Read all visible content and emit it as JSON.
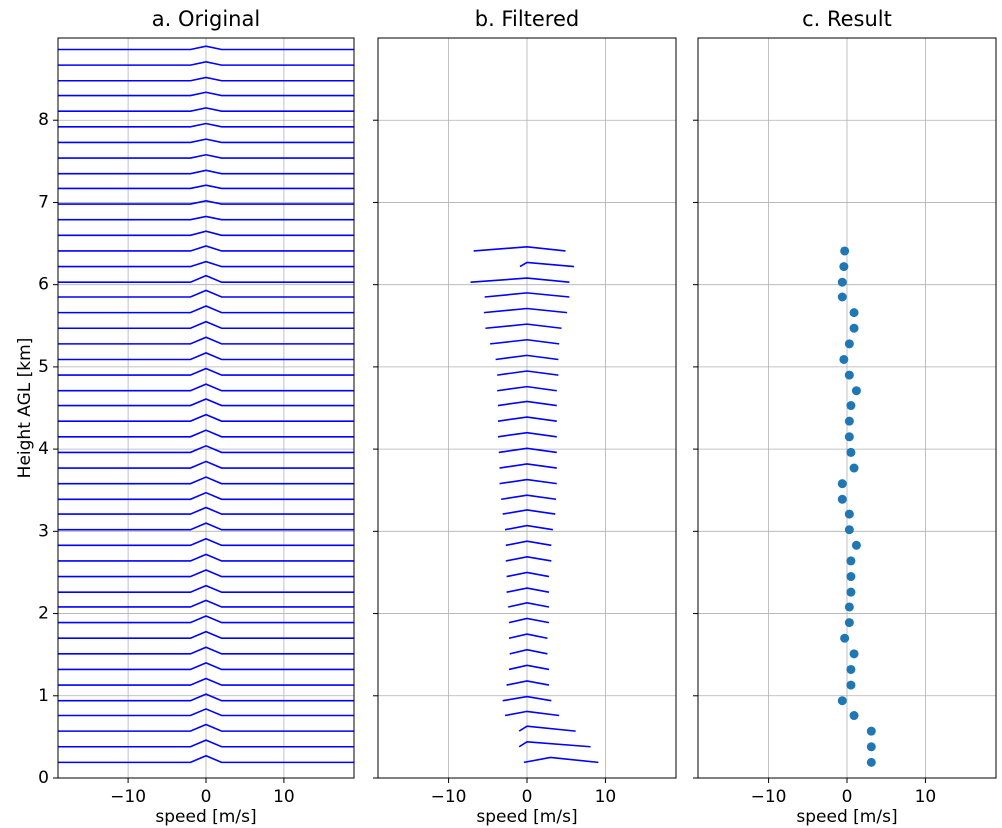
{
  "chart_data": [
    {
      "type": "line",
      "title": "a. Original",
      "xlabel": "speed [m/s]",
      "ylabel": "Height AGL [km]",
      "color": "#0000ff",
      "grid": true,
      "yticklabels": true,
      "xlim": [
        -19,
        19
      ],
      "ylim": [
        0,
        9
      ],
      "xticks": [
        {
          "value": -10,
          "label": "−10"
        },
        0,
        10
      ],
      "yticks": [
        0,
        1,
        2,
        3,
        4,
        5,
        6,
        7,
        8
      ],
      "x": [
        -19,
        -2,
        0,
        2,
        19
      ],
      "series": [
        {
          "values": [
            0.19,
            0.19,
            0.27,
            0.19,
            0.19
          ]
        },
        {
          "values": [
            0.38,
            0.38,
            0.46,
            0.38,
            0.38
          ]
        },
        {
          "values": [
            0.57,
            0.57,
            0.65,
            0.57,
            0.57
          ]
        },
        {
          "values": [
            0.76,
            0.76,
            0.84,
            0.76,
            0.76
          ]
        },
        {
          "values": [
            0.94,
            0.94,
            1.02,
            0.94,
            0.94
          ]
        },
        {
          "values": [
            1.13,
            1.13,
            1.21,
            1.13,
            1.13
          ]
        },
        {
          "values": [
            1.32,
            1.32,
            1.4,
            1.32,
            1.32
          ]
        },
        {
          "values": [
            1.51,
            1.51,
            1.59,
            1.51,
            1.51
          ]
        },
        {
          "values": [
            1.7,
            1.7,
            1.78,
            1.7,
            1.7
          ]
        },
        {
          "values": [
            1.89,
            1.89,
            1.97,
            1.89,
            1.89
          ]
        },
        {
          "values": [
            2.08,
            2.08,
            2.16,
            2.08,
            2.08
          ]
        },
        {
          "values": [
            2.26,
            2.26,
            2.34,
            2.26,
            2.26
          ]
        },
        {
          "values": [
            2.45,
            2.45,
            2.53,
            2.45,
            2.45
          ]
        },
        {
          "values": [
            2.64,
            2.64,
            2.72,
            2.64,
            2.64
          ]
        },
        {
          "values": [
            2.83,
            2.83,
            2.91,
            2.83,
            2.83
          ]
        },
        {
          "values": [
            3.02,
            3.02,
            3.1,
            3.02,
            3.02
          ]
        },
        {
          "values": [
            3.21,
            3.21,
            3.29,
            3.21,
            3.21
          ]
        },
        {
          "values": [
            3.39,
            3.39,
            3.47,
            3.39,
            3.39
          ]
        },
        {
          "values": [
            3.58,
            3.58,
            3.66,
            3.58,
            3.58
          ]
        },
        {
          "values": [
            3.77,
            3.77,
            3.85,
            3.77,
            3.77
          ]
        },
        {
          "values": [
            3.96,
            3.96,
            4.04,
            3.96,
            3.96
          ]
        },
        {
          "values": [
            4.15,
            4.15,
            4.23,
            4.15,
            4.15
          ]
        },
        {
          "values": [
            4.34,
            4.34,
            4.42,
            4.34,
            4.34
          ]
        },
        {
          "values": [
            4.53,
            4.53,
            4.61,
            4.53,
            4.53
          ]
        },
        {
          "values": [
            4.71,
            4.71,
            4.79,
            4.71,
            4.71
          ]
        },
        {
          "values": [
            4.9,
            4.9,
            4.98,
            4.9,
            4.9
          ]
        },
        {
          "values": [
            5.09,
            5.09,
            5.17,
            5.09,
            5.09
          ]
        },
        {
          "values": [
            5.28,
            5.28,
            5.36,
            5.28,
            5.28
          ]
        },
        {
          "values": [
            5.47,
            5.47,
            5.55,
            5.47,
            5.47
          ]
        },
        {
          "values": [
            5.66,
            5.66,
            5.74,
            5.66,
            5.66
          ]
        },
        {
          "values": [
            5.85,
            5.85,
            5.93,
            5.85,
            5.85
          ]
        },
        {
          "values": [
            6.03,
            6.03,
            6.11,
            6.03,
            6.03
          ]
        },
        {
          "values": [
            6.22,
            6.22,
            6.28,
            6.22,
            6.22
          ]
        },
        {
          "values": [
            6.41,
            6.41,
            6.47,
            6.41,
            6.41
          ]
        },
        {
          "values": [
            6.6,
            6.6,
            6.65,
            6.6,
            6.6
          ]
        },
        {
          "values": [
            6.79,
            6.79,
            6.83,
            6.79,
            6.79
          ]
        },
        {
          "values": [
            6.98,
            6.98,
            7.02,
            6.98,
            6.98
          ]
        },
        {
          "values": [
            7.17,
            7.17,
            7.21,
            7.17,
            7.17
          ]
        },
        {
          "values": [
            7.35,
            7.35,
            7.39,
            7.35,
            7.35
          ]
        },
        {
          "values": [
            7.54,
            7.54,
            7.58,
            7.54,
            7.54
          ]
        },
        {
          "values": [
            7.73,
            7.73,
            7.77,
            7.73,
            7.73
          ]
        },
        {
          "values": [
            7.92,
            7.92,
            7.96,
            7.92,
            7.92
          ]
        },
        {
          "values": [
            8.11,
            8.11,
            8.15,
            8.11,
            8.11
          ]
        },
        {
          "values": [
            8.3,
            8.3,
            8.34,
            8.3,
            8.3
          ]
        },
        {
          "values": [
            8.48,
            8.48,
            8.52,
            8.48,
            8.48
          ]
        },
        {
          "values": [
            8.67,
            8.67,
            8.71,
            8.67,
            8.67
          ]
        },
        {
          "values": [
            8.86,
            8.86,
            8.9,
            8.86,
            8.86
          ]
        }
      ]
    },
    {
      "type": "line",
      "title": "b. Filtered",
      "xlabel": "speed [m/s]",
      "color": "#0000ff",
      "grid": true,
      "yticklabels": false,
      "xlim": [
        -19,
        19
      ],
      "ylim": [
        0,
        9
      ],
      "xticks": [
        {
          "value": -10,
          "label": "−10"
        },
        0,
        10
      ],
      "yticks": [
        0,
        1,
        2,
        3,
        4,
        5,
        6,
        7,
        8
      ],
      "series": [
        {
          "x": [
            -0.4,
            3,
            9.1
          ],
          "values": [
            0.19,
            0.25,
            0.19
          ]
        },
        {
          "x": [
            -1,
            0,
            8.1
          ],
          "values": [
            0.38,
            0.44,
            0.38
          ]
        },
        {
          "x": [
            -1,
            0,
            6.2
          ],
          "values": [
            0.57,
            0.63,
            0.57
          ]
        },
        {
          "x": [
            -2.8,
            0,
            4.1
          ],
          "values": [
            0.76,
            0.81,
            0.76
          ]
        },
        {
          "x": [
            -3.1,
            0,
            3.1
          ],
          "values": [
            0.94,
            0.99,
            0.94
          ]
        },
        {
          "x": [
            -2.6,
            0,
            2.8
          ],
          "values": [
            1.13,
            1.18,
            1.13
          ]
        },
        {
          "x": [
            -2.3,
            0,
            2.8
          ],
          "values": [
            1.32,
            1.37,
            1.32
          ]
        },
        {
          "x": [
            -2.2,
            0,
            2.6
          ],
          "values": [
            1.51,
            1.56,
            1.51
          ]
        },
        {
          "x": [
            -2.3,
            0,
            2.6
          ],
          "values": [
            1.7,
            1.75,
            1.7
          ]
        },
        {
          "x": [
            -2.3,
            0,
            2.8
          ],
          "values": [
            1.89,
            1.94,
            1.89
          ]
        },
        {
          "x": [
            -2.4,
            0,
            2.8
          ],
          "values": [
            2.08,
            2.13,
            2.08
          ]
        },
        {
          "x": [
            -2.6,
            0,
            2.8
          ],
          "values": [
            2.26,
            2.31,
            2.26
          ]
        },
        {
          "x": [
            -2.6,
            0,
            2.8
          ],
          "values": [
            2.45,
            2.5,
            2.45
          ]
        },
        {
          "x": [
            -2.7,
            0,
            3.1
          ],
          "values": [
            2.64,
            2.69,
            2.64
          ]
        },
        {
          "x": [
            -2.7,
            0,
            3.1
          ],
          "values": [
            2.83,
            2.88,
            2.83
          ]
        },
        {
          "x": [
            -2.8,
            0,
            3.3
          ],
          "values": [
            3.02,
            3.07,
            3.02
          ]
        },
        {
          "x": [
            -3.1,
            0,
            3.6
          ],
          "values": [
            3.21,
            3.26,
            3.21
          ]
        },
        {
          "x": [
            -3.3,
            0,
            3.7
          ],
          "values": [
            3.39,
            3.44,
            3.39
          ]
        },
        {
          "x": [
            -3.5,
            0,
            3.8
          ],
          "values": [
            3.58,
            3.63,
            3.58
          ]
        },
        {
          "x": [
            -3.5,
            0,
            3.8
          ],
          "values": [
            3.77,
            3.82,
            3.77
          ]
        },
        {
          "x": [
            -3.6,
            0,
            3.8
          ],
          "values": [
            3.96,
            4.01,
            3.96
          ]
        },
        {
          "x": [
            -3.7,
            0,
            3.8
          ],
          "values": [
            4.15,
            4.2,
            4.15
          ]
        },
        {
          "x": [
            -3.7,
            0,
            3.8
          ],
          "values": [
            4.34,
            4.39,
            4.34
          ]
        },
        {
          "x": [
            -3.7,
            0,
            3.8
          ],
          "values": [
            4.53,
            4.58,
            4.53
          ]
        },
        {
          "x": [
            -3.8,
            0,
            3.8
          ],
          "values": [
            4.71,
            4.76,
            4.71
          ]
        },
        {
          "x": [
            -3.8,
            0,
            4
          ],
          "values": [
            4.9,
            4.95,
            4.9
          ]
        },
        {
          "x": [
            -4,
            0,
            4
          ],
          "values": [
            5.09,
            5.14,
            5.09
          ]
        },
        {
          "x": [
            -4.7,
            0,
            4.1
          ],
          "values": [
            5.28,
            5.33,
            5.28
          ]
        },
        {
          "x": [
            -5.3,
            0,
            4.4
          ],
          "values": [
            5.47,
            5.52,
            5.47
          ]
        },
        {
          "x": [
            -5.5,
            0,
            5.1
          ],
          "values": [
            5.66,
            5.71,
            5.66
          ]
        },
        {
          "x": [
            -5.4,
            0,
            5.4
          ],
          "values": [
            5.85,
            5.9,
            5.85
          ]
        },
        {
          "x": [
            -7.2,
            0,
            5.4
          ],
          "values": [
            6.03,
            6.08,
            6.03
          ]
        },
        {
          "x": [
            -0.9,
            0,
            6
          ],
          "values": [
            6.22,
            6.27,
            6.22
          ]
        },
        {
          "x": [
            -6.8,
            0,
            4.9
          ],
          "values": [
            6.41,
            6.46,
            6.41
          ]
        }
      ]
    },
    {
      "type": "scatter",
      "title": "c. Result",
      "xlabel": "speed [m/s]",
      "color": "#1f77b4",
      "grid": true,
      "yticklabels": false,
      "xlim": [
        -19,
        19
      ],
      "ylim": [
        0,
        9
      ],
      "xticks": [
        {
          "value": -10,
          "label": "−10"
        },
        0,
        10
      ],
      "yticks": [
        0,
        1,
        2,
        3,
        4,
        5,
        6,
        7,
        8
      ],
      "x": [
        3.1,
        3.1,
        3.1,
        0.9,
        -0.6,
        0.5,
        0.5,
        0.9,
        -0.3,
        0.3,
        0.3,
        0.5,
        0.5,
        0.5,
        1.2,
        0.3,
        0.3,
        -0.6,
        -0.6,
        0.9,
        0.5,
        0.3,
        0.3,
        0.5,
        1.2,
        0.3,
        -0.4,
        0.3,
        0.9,
        0.9,
        -0.6,
        -0.6,
        -0.4,
        -0.3
      ],
      "values": [
        0.19,
        0.38,
        0.57,
        0.76,
        0.94,
        1.13,
        1.32,
        1.51,
        1.7,
        1.89,
        2.08,
        2.26,
        2.45,
        2.64,
        2.83,
        3.02,
        3.21,
        3.39,
        3.58,
        3.77,
        3.96,
        4.15,
        4.34,
        4.53,
        4.71,
        4.9,
        5.09,
        5.28,
        5.47,
        5.66,
        5.85,
        6.03,
        6.22,
        6.41
      ]
    }
  ]
}
